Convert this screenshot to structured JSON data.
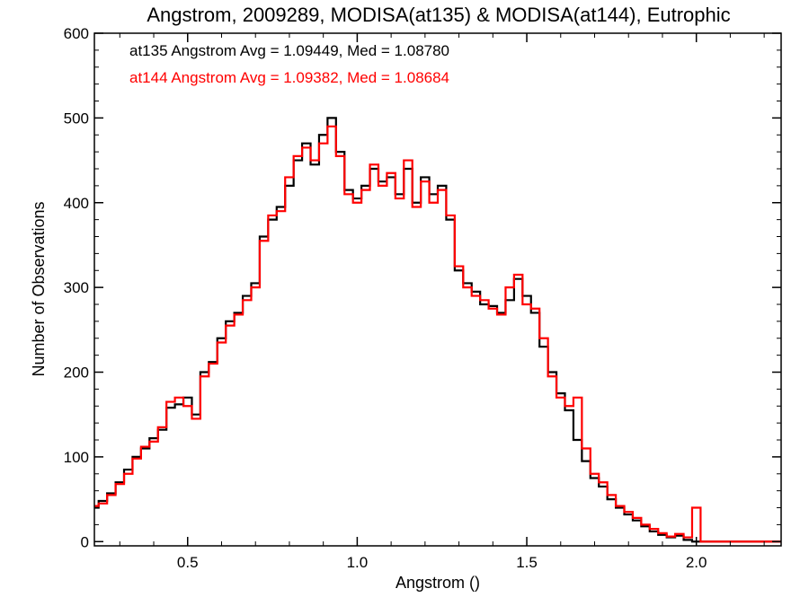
{
  "chart_data": {
    "type": "line",
    "title": "Angstrom, 2009289, MODISA(at135) & MODISA(at144), Eutrophic",
    "xlabel": "Angstrom ()",
    "ylabel": "Number of Observations",
    "xlim": [
      0.225,
      2.25
    ],
    "ylim": [
      -5,
      600
    ],
    "xticks": [
      0.5,
      1.0,
      1.5,
      2.0
    ],
    "xtick_labels": [
      "0.5",
      "1.0",
      "1.5",
      "2.0"
    ],
    "yticks": [
      0,
      100,
      200,
      300,
      400,
      500,
      600
    ],
    "ytick_labels": [
      "0",
      "100",
      "200",
      "300",
      "400",
      "500",
      "600"
    ],
    "grid": false,
    "legend_position": "top-left",
    "step": true,
    "series": [
      {
        "name": "at135",
        "label": "at135 Angstrom Avg = 1.09449, Med = 1.08780",
        "color": "#000000",
        "x": [
          0.225,
          0.25,
          0.275,
          0.3,
          0.325,
          0.35,
          0.375,
          0.4,
          0.425,
          0.45,
          0.475,
          0.5,
          0.525,
          0.55,
          0.575,
          0.6,
          0.625,
          0.65,
          0.675,
          0.7,
          0.725,
          0.75,
          0.775,
          0.8,
          0.825,
          0.85,
          0.875,
          0.9,
          0.925,
          0.95,
          0.975,
          1.0,
          1.025,
          1.05,
          1.075,
          1.1,
          1.125,
          1.15,
          1.175,
          1.2,
          1.225,
          1.25,
          1.275,
          1.3,
          1.325,
          1.35,
          1.375,
          1.4,
          1.425,
          1.45,
          1.475,
          1.5,
          1.525,
          1.55,
          1.575,
          1.6,
          1.625,
          1.65,
          1.675,
          1.7,
          1.725,
          1.75,
          1.775,
          1.8,
          1.825,
          1.85,
          1.875,
          1.9,
          1.925,
          1.95,
          1.975,
          2.0,
          2.025,
          2.05,
          2.075,
          2.1,
          2.125,
          2.15,
          2.175,
          2.2,
          2.225,
          2.25
        ],
        "y": [
          40,
          48,
          57,
          70,
          85,
          100,
          110,
          122,
          132,
          158,
          162,
          170,
          150,
          200,
          212,
          240,
          260,
          270,
          290,
          305,
          360,
          380,
          395,
          420,
          450,
          470,
          445,
          480,
          500,
          460,
          415,
          405,
          420,
          440,
          425,
          430,
          410,
          440,
          400,
          430,
          410,
          420,
          380,
          320,
          305,
          295,
          280,
          278,
          270,
          285,
          310,
          290,
          270,
          230,
          200,
          175,
          155,
          120,
          95,
          75,
          65,
          50,
          40,
          32,
          25,
          18,
          12,
          8,
          5,
          7,
          2,
          0,
          0,
          0,
          0,
          0,
          0,
          0,
          0,
          0,
          0,
          0
        ]
      },
      {
        "name": "at144",
        "label": "at144 Angstrom Avg = 1.09382, Med = 1.08684",
        "color": "#ff0000",
        "x": [
          0.225,
          0.25,
          0.275,
          0.3,
          0.325,
          0.35,
          0.375,
          0.4,
          0.425,
          0.45,
          0.475,
          0.5,
          0.525,
          0.55,
          0.575,
          0.6,
          0.625,
          0.65,
          0.675,
          0.7,
          0.725,
          0.75,
          0.775,
          0.8,
          0.825,
          0.85,
          0.875,
          0.9,
          0.925,
          0.95,
          0.975,
          1.0,
          1.025,
          1.05,
          1.075,
          1.1,
          1.125,
          1.15,
          1.175,
          1.2,
          1.225,
          1.25,
          1.275,
          1.3,
          1.325,
          1.35,
          1.375,
          1.4,
          1.425,
          1.45,
          1.475,
          1.5,
          1.525,
          1.55,
          1.575,
          1.6,
          1.625,
          1.65,
          1.675,
          1.7,
          1.725,
          1.75,
          1.775,
          1.8,
          1.825,
          1.85,
          1.875,
          1.9,
          1.925,
          1.95,
          1.975,
          2.0,
          2.025,
          2.05,
          2.075,
          2.1,
          2.125,
          2.15,
          2.175,
          2.2,
          2.225,
          2.25
        ],
        "y": [
          42,
          45,
          55,
          68,
          80,
          98,
          112,
          118,
          135,
          165,
          170,
          160,
          145,
          195,
          210,
          235,
          255,
          268,
          285,
          300,
          355,
          385,
          390,
          430,
          455,
          465,
          450,
          470,
          490,
          455,
          410,
          400,
          415,
          445,
          420,
          435,
          405,
          450,
          395,
          425,
          400,
          415,
          385,
          325,
          300,
          290,
          285,
          275,
          268,
          300,
          315,
          280,
          275,
          240,
          195,
          170,
          160,
          170,
          110,
          80,
          70,
          55,
          42,
          35,
          28,
          20,
          15,
          10,
          6,
          9,
          5,
          40,
          0,
          0,
          0,
          0,
          0,
          0,
          0,
          0,
          0,
          0
        ]
      }
    ]
  }
}
